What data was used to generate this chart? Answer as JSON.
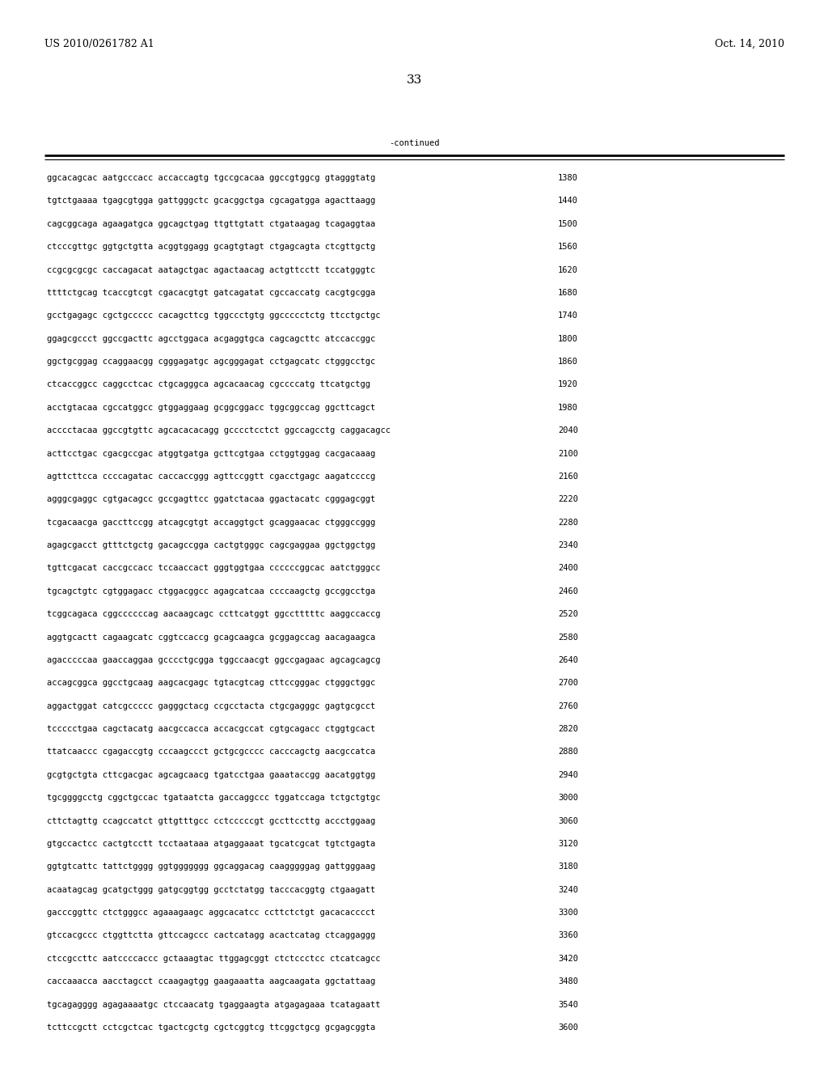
{
  "header_left": "US 2010/0261782 A1",
  "header_right": "Oct. 14, 2010",
  "page_number": "33",
  "continued_label": "-continued",
  "background_color": "#ffffff",
  "text_color": "#000000",
  "font_size_header": 9.0,
  "font_size_body": 7.5,
  "font_size_page": 11,
  "sequence_lines": [
    [
      "ggcacagcac aatgcccacc accaccagtg tgccgcacaa ggccgtggcg gtagggtatg",
      "1380"
    ],
    [
      "tgtctgaaaa tgagcgtgga gattgggctc gcacggctga cgcagatgga agacttaagg",
      "1440"
    ],
    [
      "cagcggcaga agaagatgca ggcagctgag ttgttgtatt ctgataagag tcagaggtaa",
      "1500"
    ],
    [
      "ctcccgttgc ggtgctgtta acggtggagg gcagtgtagt ctgagcagta ctcgttgctg",
      "1560"
    ],
    [
      "ccgcgcgcgc caccagacat aatagctgac agactaacag actgttcctt tccatgggtc",
      "1620"
    ],
    [
      "ttttctgcag tcaccgtcgt cgacacgtgt gatcagatat cgccaccatg cacgtgcgga",
      "1680"
    ],
    [
      "gcctgagagc cgctgccccc cacagcttcg tggccctgtg ggccccctctg ttcctgctgc",
      "1740"
    ],
    [
      "ggagcgccct ggccgacttc agcctggaca acgaggtgca cagcagcttc atccaccggc",
      "1800"
    ],
    [
      "ggctgcggag ccaggaacgg cgggagatgc agcgggagat cctgagcatc ctgggcctgc",
      "1860"
    ],
    [
      "ctcaccggcc caggcctcac ctgcagggca agcacaacag cgccccatg ttcatgctgg",
      "1920"
    ],
    [
      "acctgtacaa cgccatggcc gtggaggaag gcggcggacc tggcggccag ggcttcagct",
      "1980"
    ],
    [
      "acccctacaa ggccgtgttc agcacacacagg gcccctcctct ggccagcctg caggacagcc",
      "2040"
    ],
    [
      "acttcctgac cgacgccgac atggtgatga gcttcgtgaa cctggtggag cacgacaaag",
      "2100"
    ],
    [
      "agttcttcca ccccagatac caccaccggg agttccggtt cgacctgagc aagatccccg",
      "2160"
    ],
    [
      "agggcgaggc cgtgacagcc gccgagttcc ggatctacaa ggactacatc cgggagcggt",
      "2220"
    ],
    [
      "tcgacaacga gaccttccgg atcagcgtgt accaggtgct gcaggaacac ctgggccggg",
      "2280"
    ],
    [
      "agagcgacct gtttctgctg gacagccgga cactgtgggc cagcgaggaa ggctggctgg",
      "2340"
    ],
    [
      "tgttcgacat caccgccacc tccaaccact gggtggtgaa ccccccggcac aatctgggcc",
      "2400"
    ],
    [
      "tgcagctgtc cgtggagacc ctggacggcc agagcatcaa ccccaagctg gccggcctga",
      "2460"
    ],
    [
      "tcggcagaca cggccccccag aacaagcagc ccttcatggt ggcctttttc aaggccaccg",
      "2520"
    ],
    [
      "aggtgcactt cagaagcatc cggtccaccg gcagcaagca gcggagccag aacagaagca",
      "2580"
    ],
    [
      "agacccccaa gaaccaggaa gcccctgcgga tggccaacgt ggccgagaac agcagcagcg",
      "2640"
    ],
    [
      "accagcggca ggcctgcaag aagcacgagc tgtacgtcag cttccgggac ctgggctggc",
      "2700"
    ],
    [
      "aggactggat catcgccccc gagggctacg ccgcctacta ctgcgagggc gagtgcgcct",
      "2760"
    ],
    [
      "tccccctgaa cagctacatg aacgccacca accacgccat cgtgcagacc ctggtgcact",
      "2820"
    ],
    [
      "ttatcaaccc cgagaccgtg cccaagccct gctgcgcccc cacccagctg aacgccatca",
      "2880"
    ],
    [
      "gcgtgctgta cttcgacgac agcagcaacg tgatcctgaa gaaataccgg aacatggtgg",
      "2940"
    ],
    [
      "tgcggggcctg cggctgccac tgataatcta gaccaggccc tggatccaga tctgctgtgc",
      "3000"
    ],
    [
      "cttctagttg ccagccatct gttgtttgcc cctcccccgt gccttccttg accctggaag",
      "3060"
    ],
    [
      "gtgccactcc cactgtcctt tcctaataaa atgaggaaat tgcatcgcat tgtctgagta",
      "3120"
    ],
    [
      "ggtgtcattc tattctgggg ggtggggggg ggcaggacag caagggggag gattgggaag",
      "3180"
    ],
    [
      "acaatagcag gcatgctggg gatgcggtgg gcctctatgg tacccacggtg ctgaagatt",
      "3240"
    ],
    [
      "gacccggttc ctctgggcc agaaagaagc aggcacatcc ccttctctgt gacacacccct",
      "3300"
    ],
    [
      "gtccacgccc ctggttctta gttccagccc cactcatagg acactcatag ctcaggaggg",
      "3360"
    ],
    [
      "ctccgccttc aatccccaccc gctaaagtac ttggagcggt ctctccctcc ctcatcagcc",
      "3420"
    ],
    [
      "caccaaacca aacctagcct ccaagagtgg gaagaaatta aagcaagata ggctattaag",
      "3480"
    ],
    [
      "tgcagagggg agagaaaatgc ctccaacatg tgaggaagta atgagagaaa tcatagaatt",
      "3540"
    ],
    [
      "tcttccgctt cctcgctcac tgactcgctg cgctcggtcg ttcggctgcg gcgagcggta",
      "3600"
    ]
  ]
}
